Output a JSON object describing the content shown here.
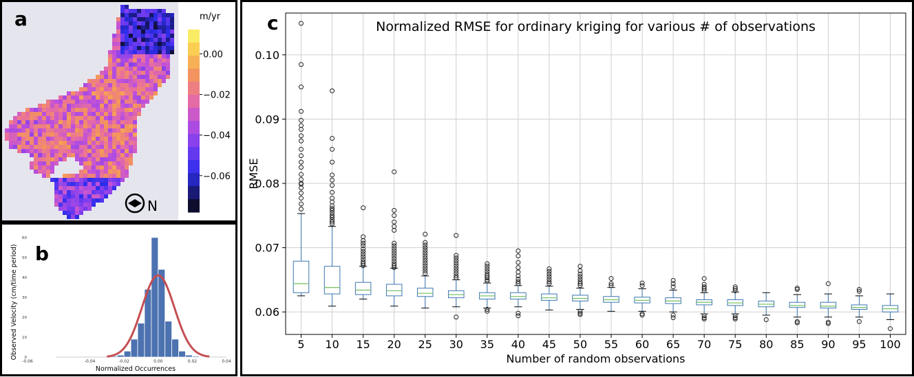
{
  "panels": {
    "a": "a",
    "b": "b",
    "c": "c"
  },
  "map": {
    "colorbar_unit": "m/yr",
    "colorbar_ticks": [
      "0.00",
      "−0.02",
      "−0.04",
      "−0.06"
    ],
    "colorbar_tick_values": [
      0.0,
      -0.02,
      -0.04,
      -0.06
    ],
    "colorbar_range": [
      -0.078,
      0.012
    ],
    "north_label": "N",
    "background_color": "#e5e5ee"
  },
  "histogram": {
    "ylabel": "Observed Velocity (cm/time period)",
    "xlabel": "Normalized Occurrences",
    "x_ticks": [
      "-0.06",
      "-0.04",
      "-0.02",
      "0.00",
      "0.02",
      "0.04"
    ],
    "x_tick_values": [
      -0.06,
      -0.04,
      -0.02,
      0.0,
      0.02,
      0.04
    ],
    "y_ticks": [
      "0",
      "10",
      "20",
      "30",
      "40",
      "50",
      "60"
    ],
    "y_tick_values": [
      0,
      10,
      20,
      30,
      40,
      50,
      60
    ],
    "bar_color": "#4c72b0",
    "fit_color": "#c44e52"
  },
  "chart_data": [
    {
      "type": "heatmap",
      "description_unit": "m/yr",
      "colorscale": "plasma-like",
      "range": [
        -0.078,
        0.012
      ]
    },
    {
      "type": "bar",
      "xlabel": "Normalized Occurrences",
      "ylabel": "Observed Velocity (cm/time period)",
      "xlim": [
        -0.06,
        0.04
      ],
      "ylim": [
        0,
        62
      ],
      "bin_width": 0.004,
      "bin_centers": [
        -0.026,
        -0.022,
        -0.018,
        -0.014,
        -0.01,
        -0.006,
        -0.002,
        0.002,
        0.006,
        0.01,
        0.014,
        0.018,
        0.022,
        0.026
      ],
      "values": [
        0.5,
        1,
        3,
        9,
        17,
        34,
        60,
        44,
        18,
        9,
        3,
        1,
        0.5,
        0.3
      ],
      "fit_curve": {
        "type": "normal",
        "mean": 0.0,
        "peak": 41,
        "sigma": 0.0095
      }
    },
    {
      "type": "box",
      "title": "Normalized RMSE for ordinary kriging for various # of observations",
      "xlabel": "Number of random observations",
      "ylabel": "RMSE",
      "ylim": [
        0.0565,
        0.1065
      ],
      "yticks": [
        0.06,
        0.07,
        0.08,
        0.09,
        0.1
      ],
      "ytick_labels": [
        "0.06",
        "0.07",
        "0.08",
        "0.09",
        "0.10"
      ],
      "grid": true,
      "box_color": "#3a75b0",
      "median_color": "#7cc36b",
      "categories": [
        "5",
        "10",
        "15",
        "20",
        "25",
        "30",
        "35",
        "40",
        "45",
        "50",
        "55",
        "60",
        "65",
        "70",
        "75",
        "80",
        "85",
        "90",
        "95",
        "100"
      ],
      "boxes": [
        {
          "q1": 0.063,
          "median": 0.0644,
          "q3": 0.0679,
          "whislo": 0.0625,
          "whishi": 0.0753,
          "fliers": [
            0.1049,
            0.0985,
            0.095,
            0.0912,
            0.0898,
            0.089,
            0.0884,
            0.0874,
            0.0866,
            0.0853,
            0.0843,
            0.0833,
            0.0825,
            0.0814,
            0.0806,
            0.08,
            0.0799,
            0.0793,
            0.0785,
            0.0777,
            0.0768,
            0.076
          ]
        },
        {
          "q1": 0.0628,
          "median": 0.0638,
          "q3": 0.0671,
          "whislo": 0.0609,
          "whishi": 0.0733,
          "fliers": [
            0.0944,
            0.087,
            0.0853,
            0.0833,
            0.0813,
            0.0805,
            0.0797,
            0.0786,
            0.0777,
            0.0771,
            0.0765,
            0.0761,
            0.0758,
            0.0754,
            0.075,
            0.0747,
            0.0743,
            0.074,
            0.0737
          ]
        },
        {
          "q1": 0.0627,
          "median": 0.0634,
          "q3": 0.0646,
          "whislo": 0.062,
          "whishi": 0.0671,
          "fliers": [
            0.0762,
            0.0717,
            0.0711,
            0.0707,
            0.0703,
            0.0698,
            0.0694,
            0.069,
            0.0686,
            0.0682,
            0.0678,
            0.0675,
            0.0672
          ]
        },
        {
          "q1": 0.0625,
          "median": 0.0633,
          "q3": 0.0643,
          "whislo": 0.0609,
          "whishi": 0.0668,
          "fliers": [
            0.0818,
            0.0758,
            0.075,
            0.074,
            0.0733,
            0.0727,
            0.0707,
            0.0703,
            0.0699,
            0.0695,
            0.0691,
            0.0687,
            0.0683,
            0.0679,
            0.0675,
            0.0672,
            0.0669
          ]
        },
        {
          "q1": 0.0624,
          "median": 0.0629,
          "q3": 0.0637,
          "whislo": 0.0606,
          "whishi": 0.0656,
          "fliers": [
            0.0721,
            0.0708,
            0.0704,
            0.07,
            0.0696,
            0.0692,
            0.0688,
            0.0684,
            0.068,
            0.0676,
            0.0672,
            0.0668,
            0.0664,
            0.066
          ]
        },
        {
          "q1": 0.0622,
          "median": 0.0627,
          "q3": 0.0633,
          "whislo": 0.0608,
          "whishi": 0.065,
          "fliers": [
            0.0719,
            0.0688,
            0.0684,
            0.068,
            0.0676,
            0.0672,
            0.0668,
            0.0664,
            0.066,
            0.0656,
            0.0653,
            0.0592
          ]
        },
        {
          "q1": 0.062,
          "median": 0.0625,
          "q3": 0.063,
          "whislo": 0.0606,
          "whishi": 0.0645,
          "fliers": [
            0.0675,
            0.0671,
            0.0667,
            0.0663,
            0.0659,
            0.0656,
            0.0653,
            0.065,
            0.0648,
            0.0604,
            0.0601
          ]
        },
        {
          "q1": 0.062,
          "median": 0.0624,
          "q3": 0.063,
          "whislo": 0.0608,
          "whishi": 0.0641,
          "fliers": [
            0.0695,
            0.0687,
            0.0677,
            0.0669,
            0.0662,
            0.0656,
            0.0651,
            0.0647,
            0.0644,
            0.0598,
            0.0594
          ]
        },
        {
          "q1": 0.0618,
          "median": 0.0622,
          "q3": 0.0628,
          "whislo": 0.0603,
          "whishi": 0.064,
          "fliers": [
            0.0667,
            0.0663,
            0.0659,
            0.0655,
            0.0651,
            0.0647,
            0.0644
          ]
        },
        {
          "q1": 0.0617,
          "median": 0.0621,
          "q3": 0.0626,
          "whislo": 0.0604,
          "whishi": 0.0637,
          "fliers": [
            0.0671,
            0.0664,
            0.0659,
            0.0655,
            0.0651,
            0.0647,
            0.0644,
            0.0641,
            0.0601,
            0.0598,
            0.0596
          ]
        },
        {
          "q1": 0.0615,
          "median": 0.0619,
          "q3": 0.0624,
          "whislo": 0.0601,
          "whishi": 0.0638,
          "fliers": [
            0.0652,
            0.0644,
            0.0641
          ]
        },
        {
          "q1": 0.0614,
          "median": 0.0618,
          "q3": 0.0623,
          "whislo": 0.0601,
          "whishi": 0.0636,
          "fliers": [
            0.0645,
            0.0641,
            0.0597,
            0.0595
          ]
        },
        {
          "q1": 0.0613,
          "median": 0.0617,
          "q3": 0.0622,
          "whislo": 0.06,
          "whishi": 0.0634,
          "fliers": [
            0.0649,
            0.0644,
            0.0639,
            0.0595,
            0.0591
          ]
        },
        {
          "q1": 0.0611,
          "median": 0.0615,
          "q3": 0.0619,
          "whislo": 0.0597,
          "whishi": 0.063,
          "fliers": [
            0.0652,
            0.0643,
            0.0639,
            0.0636,
            0.0633,
            0.0594,
            0.0591,
            0.0589
          ]
        },
        {
          "q1": 0.061,
          "median": 0.0614,
          "q3": 0.0619,
          "whislo": 0.0597,
          "whishi": 0.0631,
          "fliers": [
            0.0639,
            0.0636,
            0.0633,
            0.0594,
            0.0591,
            0.0589
          ]
        },
        {
          "q1": 0.0608,
          "median": 0.0612,
          "q3": 0.0617,
          "whislo": 0.0595,
          "whishi": 0.063,
          "fliers": [
            0.0588
          ]
        },
        {
          "q1": 0.0607,
          "median": 0.061,
          "q3": 0.0615,
          "whislo": 0.0592,
          "whishi": 0.0627,
          "fliers": [
            0.0637,
            0.0635,
            0.0585,
            0.0583
          ]
        },
        {
          "q1": 0.0606,
          "median": 0.0609,
          "q3": 0.0615,
          "whislo": 0.0592,
          "whishi": 0.0628,
          "fliers": [
            0.0644,
            0.0584,
            0.0582
          ]
        },
        {
          "q1": 0.0604,
          "median": 0.0607,
          "q3": 0.0611,
          "whislo": 0.0592,
          "whishi": 0.0625,
          "fliers": [
            0.0635,
            0.0632,
            0.0585
          ]
        },
        {
          "q1": 0.06,
          "median": 0.0605,
          "q3": 0.061,
          "whislo": 0.0588,
          "whishi": 0.0628,
          "fliers": [
            0.0574
          ]
        }
      ]
    }
  ]
}
